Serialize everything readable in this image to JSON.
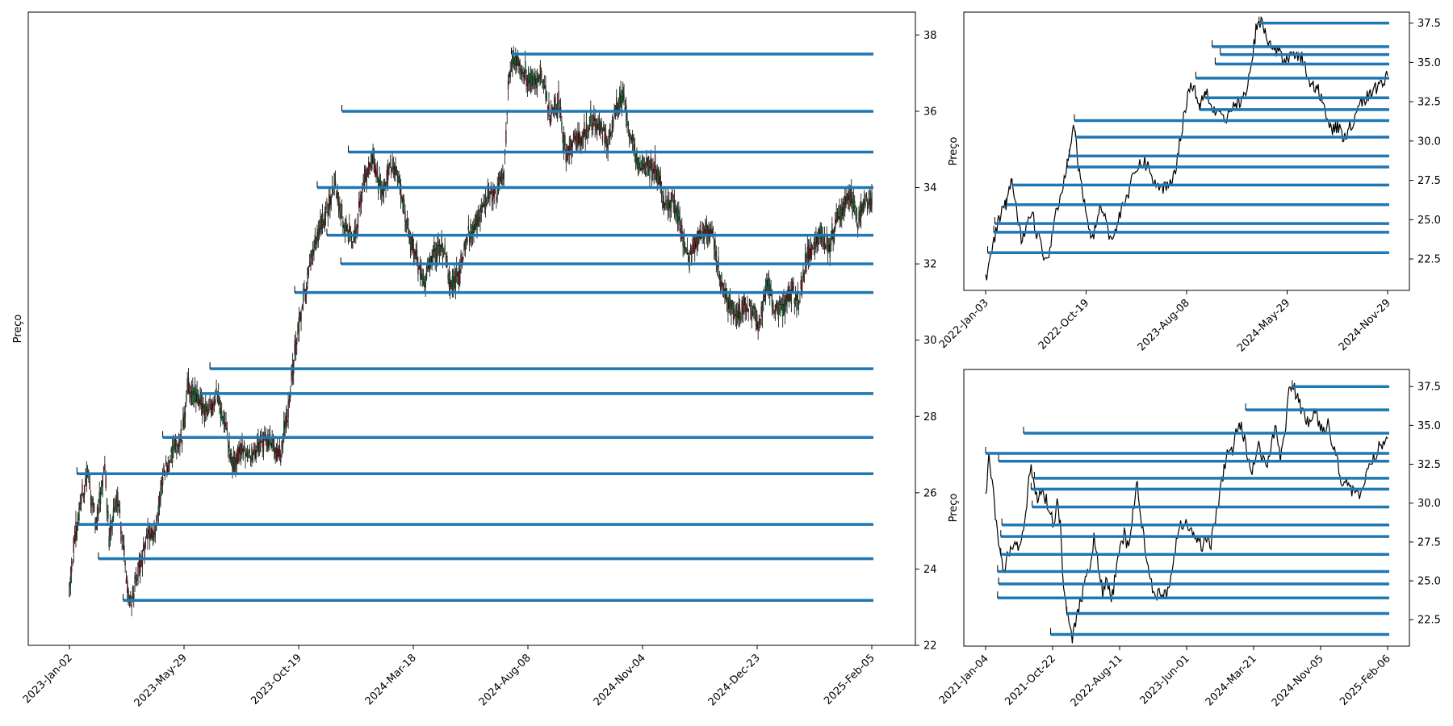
{
  "chart_data": [
    {
      "id": "main",
      "type": "candlestick",
      "ylabel": "Preço",
      "y_axis_side": "right",
      "ylim": [
        22,
        38.6
      ],
      "yticks": [
        22,
        24,
        26,
        28,
        30,
        32,
        34,
        36,
        38
      ],
      "yticklabels": [
        "22",
        "24",
        "26",
        "28",
        "30",
        "32",
        "34",
        "36",
        "38"
      ],
      "xticklabels": [
        "2023-Jan-02",
        "2023-May-29",
        "2023-Oct-19",
        "2024-Mar-18",
        "2024-Aug-08",
        "2024-Nov-04",
        "2024-Dec-23",
        "2025-Feb-05"
      ],
      "price_anchors": [
        [
          0,
          23.6
        ],
        [
          4,
          24.5
        ],
        [
          10,
          25.7
        ],
        [
          17,
          26.5
        ],
        [
          25,
          25.1
        ],
        [
          33,
          26.8
        ],
        [
          37,
          24.8
        ],
        [
          45,
          26.0
        ],
        [
          55,
          23.3
        ],
        [
          58,
          23.2
        ],
        [
          66,
          24.1
        ],
        [
          74,
          24.9
        ],
        [
          80,
          25.0
        ],
        [
          88,
          26.5
        ],
        [
          97,
          27.1
        ],
        [
          105,
          27.4
        ],
        [
          110,
          28.7
        ],
        [
          115,
          28.6
        ],
        [
          121,
          28.3
        ],
        [
          130,
          28.2
        ],
        [
          138,
          28.6
        ],
        [
          146,
          27.7
        ],
        [
          152,
          26.6
        ],
        [
          160,
          27.2
        ],
        [
          170,
          26.9
        ],
        [
          178,
          27.3
        ],
        [
          187,
          27.4
        ],
        [
          196,
          26.9
        ],
        [
          203,
          28.0
        ],
        [
          210,
          29.6
        ],
        [
          218,
          31.0
        ],
        [
          228,
          32.4
        ],
        [
          238,
          33.2
        ],
        [
          248,
          34.1
        ],
        [
          256,
          33.0
        ],
        [
          265,
          32.6
        ],
        [
          273,
          34.0
        ],
        [
          283,
          34.7
        ],
        [
          291,
          33.9
        ],
        [
          299,
          34.5
        ],
        [
          307,
          34.2
        ],
        [
          315,
          33.0
        ],
        [
          324,
          32.0
        ],
        [
          331,
          31.6
        ],
        [
          340,
          32.4
        ],
        [
          349,
          32.4
        ],
        [
          355,
          31.4
        ],
        [
          363,
          31.7
        ],
        [
          372,
          32.8
        ],
        [
          380,
          33.1
        ],
        [
          389,
          33.7
        ],
        [
          397,
          33.8
        ],
        [
          405,
          34.4
        ],
        [
          410,
          37.1
        ],
        [
          417,
          37.4
        ],
        [
          425,
          37.0
        ],
        [
          432,
          36.7
        ],
        [
          440,
          36.9
        ],
        [
          448,
          35.9
        ],
        [
          456,
          36.2
        ],
        [
          463,
          34.9
        ],
        [
          470,
          35.2
        ],
        [
          478,
          35.3
        ],
        [
          486,
          35.7
        ],
        [
          494,
          35.6
        ],
        [
          502,
          35.2
        ],
        [
          509,
          36.0
        ],
        [
          516,
          36.4
        ],
        [
          524,
          35.3
        ],
        [
          531,
          34.6
        ],
        [
          539,
          34.5
        ],
        [
          547,
          34.5
        ],
        [
          554,
          33.6
        ],
        [
          562,
          33.7
        ],
        [
          570,
          32.9
        ],
        [
          578,
          32.1
        ],
        [
          586,
          32.8
        ],
        [
          592,
          32.9
        ],
        [
          600,
          32.7
        ],
        [
          607,
          31.5
        ],
        [
          615,
          30.9
        ],
        [
          622,
          30.6
        ],
        [
          629,
          30.9
        ],
        [
          637,
          30.8
        ],
        [
          643,
          30.4
        ],
        [
          650,
          31.5
        ],
        [
          658,
          30.8
        ],
        [
          666,
          30.9
        ],
        [
          673,
          31.3
        ],
        [
          680,
          31.0
        ],
        [
          688,
          32.3
        ],
        [
          694,
          32.5
        ],
        [
          700,
          32.8
        ],
        [
          708,
          32.4
        ],
        [
          715,
          33.1
        ],
        [
          722,
          33.5
        ],
        [
          728,
          33.8
        ],
        [
          735,
          33.1
        ],
        [
          742,
          33.6
        ],
        [
          748,
          33.7
        ]
      ],
      "n_candles": 749,
      "support_resistance": [
        {
          "level": 37.5,
          "from_index": 412
        },
        {
          "level": 36.0,
          "from_index": 254
        },
        {
          "level": 34.93,
          "from_index": 260
        },
        {
          "level": 34.0,
          "from_index": 231
        },
        {
          "level": 32.75,
          "from_index": 240
        },
        {
          "level": 32.0,
          "from_index": 253
        },
        {
          "level": 31.25,
          "from_index": 210
        },
        {
          "level": 29.25,
          "from_index": 131
        },
        {
          "level": 28.6,
          "from_index": 122
        },
        {
          "level": 27.45,
          "from_index": 87
        },
        {
          "level": 26.5,
          "from_index": 7
        },
        {
          "level": 25.17,
          "from_index": 8
        },
        {
          "level": 24.27,
          "from_index": 27
        },
        {
          "level": 23.18,
          "from_index": 50
        }
      ]
    },
    {
      "id": "top-right",
      "type": "line",
      "ylabel": "Preço",
      "y_axis_side": "right",
      "ylim": [
        20.5,
        38.2
      ],
      "yticks": [
        22.5,
        25.0,
        27.5,
        30.0,
        32.5,
        35.0,
        37.5
      ],
      "yticklabels": [
        "22.5",
        "25.0",
        "27.5",
        "30.0",
        "32.5",
        "35.0",
        "37.5"
      ],
      "xticklabels": [
        "2022-Jan-03",
        "2022-Oct-19",
        "2023-Aug-08",
        "2024-May-29",
        "2024-Nov-29"
      ],
      "price_anchors": [
        [
          0,
          21.2
        ],
        [
          5,
          22.6
        ],
        [
          10,
          24.1
        ],
        [
          15,
          25.4
        ],
        [
          20,
          26.0
        ],
        [
          25,
          27.5
        ],
        [
          28,
          26.6
        ],
        [
          32,
          24.7
        ],
        [
          36,
          23.5
        ],
        [
          40,
          25.0
        ],
        [
          45,
          25.6
        ],
        [
          50,
          24.2
        ],
        [
          55,
          23.2
        ],
        [
          60,
          22.2
        ],
        [
          65,
          24.1
        ],
        [
          70,
          25.8
        ],
        [
          75,
          26.8
        ],
        [
          80,
          28.9
        ],
        [
          85,
          30.5
        ],
        [
          87,
          31.1
        ],
        [
          90,
          28.7
        ],
        [
          95,
          26.8
        ],
        [
          100,
          24.7
        ],
        [
          105,
          23.8
        ],
        [
          110,
          25.3
        ],
        [
          115,
          25.9
        ],
        [
          120,
          24.3
        ],
        [
          125,
          23.7
        ],
        [
          130,
          24.9
        ],
        [
          135,
          26.2
        ],
        [
          140,
          26.6
        ],
        [
          145,
          27.8
        ],
        [
          150,
          28.4
        ],
        [
          155,
          28.7
        ],
        [
          160,
          28.3
        ],
        [
          165,
          27.4
        ],
        [
          170,
          26.9
        ],
        [
          175,
          27.1
        ],
        [
          180,
          27.3
        ],
        [
          185,
          27.9
        ],
        [
          190,
          29.8
        ],
        [
          195,
          31.9
        ],
        [
          200,
          33.5
        ],
        [
          205,
          33.3
        ],
        [
          210,
          32.2
        ],
        [
          215,
          33.5
        ],
        [
          220,
          32.5
        ],
        [
          225,
          31.8
        ],
        [
          230,
          32.0
        ],
        [
          235,
          31.1
        ],
        [
          240,
          31.7
        ],
        [
          245,
          32.5
        ],
        [
          250,
          32.4
        ],
        [
          255,
          33.0
        ],
        [
          260,
          34.6
        ],
        [
          265,
          37.1
        ],
        [
          270,
          37.6
        ],
        [
          275,
          36.7
        ],
        [
          280,
          35.9
        ],
        [
          285,
          35.7
        ],
        [
          290,
          35.4
        ],
        [
          295,
          35.1
        ],
        [
          300,
          35.9
        ],
        [
          305,
          35.4
        ],
        [
          310,
          35.3
        ],
        [
          315,
          34.2
        ],
        [
          320,
          33.5
        ],
        [
          325,
          33.4
        ],
        [
          330,
          32.6
        ],
        [
          335,
          31.5
        ],
        [
          340,
          30.7
        ],
        [
          345,
          30.9
        ],
        [
          350,
          30.3
        ],
        [
          355,
          30.6
        ],
        [
          360,
          31.2
        ],
        [
          365,
          32.4
        ],
        [
          370,
          32.6
        ],
        [
          375,
          32.8
        ],
        [
          380,
          33.1
        ],
        [
          385,
          33.6
        ],
        [
          390,
          33.9
        ],
        [
          394,
          34.1
        ]
      ],
      "n_points": 395,
      "support_resistance": [
        {
          "level": 37.5,
          "from_index": 268
        },
        {
          "level": 36.0,
          "from_index": 222
        },
        {
          "level": 35.5,
          "from_index": 230
        },
        {
          "level": 34.9,
          "from_index": 225
        },
        {
          "level": 34.0,
          "from_index": 206
        },
        {
          "level": 32.75,
          "from_index": 215
        },
        {
          "level": 32.0,
          "from_index": 210
        },
        {
          "level": 31.3,
          "from_index": 87
        },
        {
          "level": 30.25,
          "from_index": 88
        },
        {
          "level": 29.05,
          "from_index": 82
        },
        {
          "level": 28.35,
          "from_index": 80
        },
        {
          "level": 27.2,
          "from_index": 26
        },
        {
          "level": 25.95,
          "from_index": 20
        },
        {
          "level": 24.75,
          "from_index": 9
        },
        {
          "level": 24.2,
          "from_index": 8
        },
        {
          "level": 22.9,
          "from_index": 2
        }
      ]
    },
    {
      "id": "bottom-right",
      "type": "line",
      "ylabel": "Preço",
      "y_axis_side": "right",
      "ylim": [
        20.8,
        38.6
      ],
      "yticks": [
        22.5,
        25.0,
        27.5,
        30.0,
        32.5,
        35.0,
        37.5
      ],
      "yticklabels": [
        "22.5",
        "25.0",
        "27.5",
        "30.0",
        "32.5",
        "35.0",
        "37.5"
      ],
      "xticklabels": [
        "2021-Jan-04",
        "2021-Oct-22",
        "2022-Aug-11",
        "2023-Jun-01",
        "2024-Mar-21",
        "2024-Nov-05",
        "2025-Feb-06"
      ],
      "price_anchors": [
        [
          0,
          30.3
        ],
        [
          3,
          33.0
        ],
        [
          6,
          31.5
        ],
        [
          9,
          29.0
        ],
        [
          12,
          27.5
        ],
        [
          15,
          26.3
        ],
        [
          18,
          25.3
        ],
        [
          21,
          27.1
        ],
        [
          24,
          26.8
        ],
        [
          27,
          27.5
        ],
        [
          30,
          27.0
        ],
        [
          34,
          27.9
        ],
        [
          38,
          29.8
        ],
        [
          40,
          31.5
        ],
        [
          42,
          32.6
        ],
        [
          45,
          31.0
        ],
        [
          48,
          30.4
        ],
        [
          52,
          31.0
        ],
        [
          56,
          30.2
        ],
        [
          60,
          29.5
        ],
        [
          63,
          28.5
        ],
        [
          66,
          30.0
        ],
        [
          69,
          28.8
        ],
        [
          72,
          24.2
        ],
        [
          74,
          23.4
        ],
        [
          77,
          22.0
        ],
        [
          80,
          21.4
        ],
        [
          84,
          22.6
        ],
        [
          88,
          23.8
        ],
        [
          92,
          24.9
        ],
        [
          96,
          26.0
        ],
        [
          100,
          27.7
        ],
        [
          104,
          26.0
        ],
        [
          108,
          24.2
        ],
        [
          112,
          25.0
        ],
        [
          116,
          23.7
        ],
        [
          120,
          25.4
        ],
        [
          124,
          26.9
        ],
        [
          128,
          28.0
        ],
        [
          132,
          27.0
        ],
        [
          136,
          29.6
        ],
        [
          140,
          31.2
        ],
        [
          144,
          28.8
        ],
        [
          148,
          26.8
        ],
        [
          152,
          25.2
        ],
        [
          156,
          24.2
        ],
        [
          160,
          24.1
        ],
        [
          164,
          23.9
        ],
        [
          168,
          24.5
        ],
        [
          172,
          25.6
        ],
        [
          176,
          27.5
        ],
        [
          180,
          28.5
        ],
        [
          184,
          28.9
        ],
        [
          188,
          28.2
        ],
        [
          192,
          28.0
        ],
        [
          196,
          27.5
        ],
        [
          200,
          27.3
        ],
        [
          204,
          27.9
        ],
        [
          208,
          27.4
        ],
        [
          212,
          28.9
        ],
        [
          216,
          30.5
        ],
        [
          220,
          32.1
        ],
        [
          224,
          33.5
        ],
        [
          228,
          33.4
        ],
        [
          232,
          34.7
        ],
        [
          236,
          34.9
        ],
        [
          240,
          33.8
        ],
        [
          244,
          32.0
        ],
        [
          248,
          32.5
        ],
        [
          252,
          33.9
        ],
        [
          256,
          32.7
        ],
        [
          260,
          32.7
        ],
        [
          264,
          33.8
        ],
        [
          268,
          34.8
        ],
        [
          272,
          33.0
        ],
        [
          276,
          34.5
        ],
        [
          280,
          37.2
        ],
        [
          284,
          37.5
        ],
        [
          288,
          36.7
        ],
        [
          292,
          35.9
        ],
        [
          296,
          35.4
        ],
        [
          300,
          35.0
        ],
        [
          304,
          36.1
        ],
        [
          308,
          35.1
        ],
        [
          312,
          34.8
        ],
        [
          316,
          35.1
        ],
        [
          320,
          33.7
        ],
        [
          324,
          33.1
        ],
        [
          328,
          31.6
        ],
        [
          332,
          31.3
        ],
        [
          336,
          31.2
        ],
        [
          340,
          30.5
        ],
        [
          344,
          30.4
        ],
        [
          348,
          31.0
        ],
        [
          352,
          32.0
        ],
        [
          356,
          32.6
        ],
        [
          360,
          33.1
        ],
        [
          364,
          33.7
        ],
        [
          368,
          34.0
        ],
        [
          371,
          34.1
        ]
      ],
      "n_points": 372,
      "support_resistance": [
        {
          "level": 37.5,
          "from_index": 283
        },
        {
          "level": 36.0,
          "from_index": 240
        },
        {
          "level": 34.5,
          "from_index": 35
        },
        {
          "level": 33.2,
          "from_index": 0
        },
        {
          "level": 32.7,
          "from_index": 12
        },
        {
          "level": 31.6,
          "from_index": 45
        },
        {
          "level": 30.9,
          "from_index": 42
        },
        {
          "level": 29.75,
          "from_index": 43
        },
        {
          "level": 28.6,
          "from_index": 15
        },
        {
          "level": 27.85,
          "from_index": 14
        },
        {
          "level": 26.7,
          "from_index": 14
        },
        {
          "level": 25.6,
          "from_index": 11
        },
        {
          "level": 24.8,
          "from_index": 12
        },
        {
          "level": 23.9,
          "from_index": 11
        },
        {
          "level": 22.9,
          "from_index": 75
        },
        {
          "level": 21.55,
          "from_index": 60
        }
      ]
    }
  ]
}
